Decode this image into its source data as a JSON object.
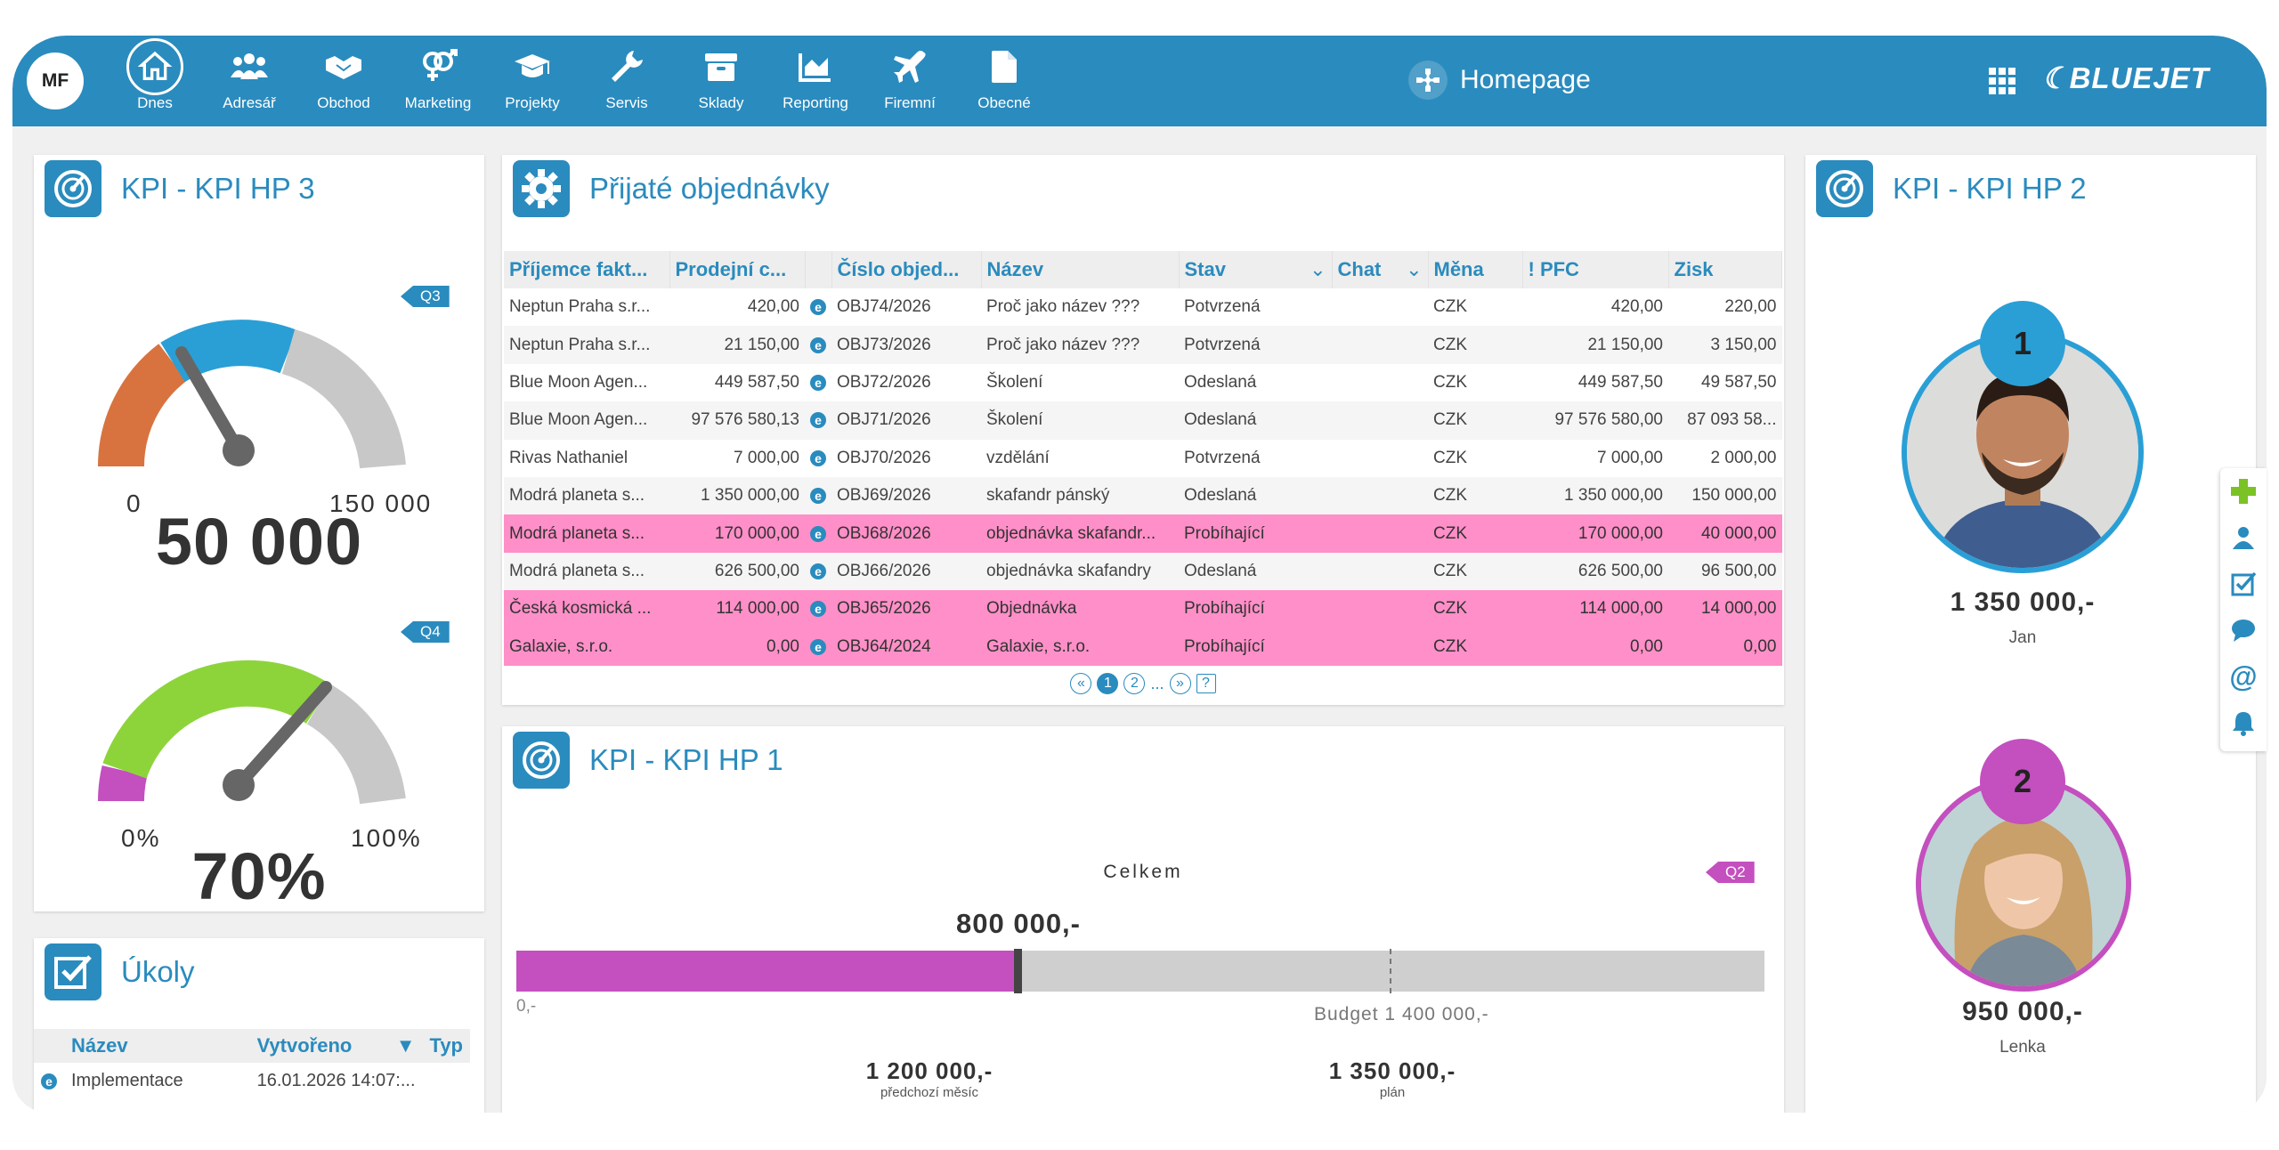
{
  "header": {
    "user_initials": "MF",
    "page_title": "Homepage",
    "brand": "BLUEJET",
    "nav": [
      {
        "label": "Dnes",
        "icon": "home-icon",
        "active": true
      },
      {
        "label": "Adresář",
        "icon": "people-icon"
      },
      {
        "label": "Obchod",
        "icon": "handshake-icon"
      },
      {
        "label": "Marketing",
        "icon": "gender-icon"
      },
      {
        "label": "Projekty",
        "icon": "graduation-cap-icon"
      },
      {
        "label": "Servis",
        "icon": "wrench-icon"
      },
      {
        "label": "Sklady",
        "icon": "box-icon"
      },
      {
        "label": "Reporting",
        "icon": "chart-icon"
      },
      {
        "label": "Firemní",
        "icon": "plane-icon"
      },
      {
        "label": "Obecné",
        "icon": "document-icon"
      }
    ]
  },
  "kpi3": {
    "title": "KPI - KPI HP 3",
    "gauge1": {
      "badge": "Q3",
      "min": "0",
      "max": "150 000",
      "value": "50 000",
      "fraction": 0.33
    },
    "gauge2": {
      "badge": "Q4",
      "min": "0%",
      "max": "100%",
      "value": "70%",
      "fraction": 0.7
    }
  },
  "orders": {
    "title": "Přijaté objednávky",
    "columns": [
      "Příjemce fakt...",
      "Prodejní c...",
      "",
      "Číslo objed...",
      "Název",
      "Stav",
      "Chat",
      "Měna",
      "! PFC",
      "Zisk"
    ],
    "rows": [
      {
        "recipient": "Neptun Praha s.r...",
        "price": "420,00",
        "number": "OBJ74/2026",
        "name": "Proč jako název ???",
        "state": "Potvrzená",
        "currency": "CZK",
        "pfc": "420,00",
        "profit": "220,00",
        "hl": false
      },
      {
        "recipient": "Neptun Praha s.r...",
        "price": "21 150,00",
        "number": "OBJ73/2026",
        "name": "Proč jako název ???",
        "state": "Potvrzená",
        "currency": "CZK",
        "pfc": "21 150,00",
        "profit": "3 150,00",
        "hl": false
      },
      {
        "recipient": "Blue Moon Agen...",
        "price": "449 587,50",
        "number": "OBJ72/2026",
        "name": "Školení",
        "state": "Odeslaná",
        "currency": "CZK",
        "pfc": "449 587,50",
        "profit": "49 587,50",
        "hl": false
      },
      {
        "recipient": "Blue Moon Agen...",
        "price": "97 576 580,13",
        "number": "OBJ71/2026",
        "name": "Školení",
        "state": "Odeslaná",
        "currency": "CZK",
        "pfc": "97 576 580,00",
        "profit": "87 093 58...",
        "hl": false
      },
      {
        "recipient": "Rivas Nathaniel",
        "price": "7 000,00",
        "number": "OBJ70/2026",
        "name": "vzdělání",
        "state": "Potvrzená",
        "currency": "CZK",
        "pfc": "7 000,00",
        "profit": "2 000,00",
        "hl": false
      },
      {
        "recipient": "Modrá planeta s...",
        "price": "1 350 000,00",
        "number": "OBJ69/2026",
        "name": "skafandr pánský",
        "state": "Odeslaná",
        "currency": "CZK",
        "pfc": "1 350 000,00",
        "profit": "150 000,00",
        "hl": false
      },
      {
        "recipient": "Modrá planeta s...",
        "price": "170 000,00",
        "number": "OBJ68/2026",
        "name": "objednávka skafandr...",
        "state": "Probíhající",
        "currency": "CZK",
        "pfc": "170 000,00",
        "profit": "40 000,00",
        "hl": true
      },
      {
        "recipient": "Modrá planeta s...",
        "price": "626 500,00",
        "number": "OBJ66/2026",
        "name": "objednávka skafandry",
        "state": "Odeslaná",
        "currency": "CZK",
        "pfc": "626 500,00",
        "profit": "96 500,00",
        "hl": false
      },
      {
        "recipient": "Česká kosmická ...",
        "price": "114 000,00",
        "number": "OBJ65/2026",
        "name": "Objednávka",
        "state": "Probíhající",
        "currency": "CZK",
        "pfc": "114 000,00",
        "profit": "14 000,00",
        "hl": true
      },
      {
        "recipient": "Galaxie, s.r.o.",
        "price": "0,00",
        "number": "OBJ64/2024",
        "name": "Galaxie, s.r.o.",
        "state": "Probíhající",
        "currency": "CZK",
        "pfc": "0,00",
        "profit": "0,00",
        "hl": true
      }
    ],
    "pager": {
      "first": "«",
      "pages": [
        "1",
        "2"
      ],
      "ellipsis": "...",
      "last": "»",
      "help": "?"
    }
  },
  "kpi1": {
    "title": "KPI - KPI HP 1",
    "section": "Celkem",
    "badge": "Q2",
    "value": "800 000,-",
    "zero": "0,-",
    "budget": "Budget 1 400 000,-",
    "fill_fraction": 0.4,
    "budget_fraction": 0.7,
    "stats": [
      {
        "value": "1 200 000,-",
        "label": "předchozí měsíc"
      },
      {
        "value": "1 350 000,-",
        "label": "plán"
      }
    ]
  },
  "tasks": {
    "title": "Úkoly",
    "columns": [
      "Název",
      "Vytvořeno",
      "Typ"
    ],
    "rows": [
      {
        "name": "Implementace",
        "created": "16.01.2026 14:07:..."
      }
    ]
  },
  "kpi2": {
    "title": "KPI - KPI HP 2",
    "people": [
      {
        "rank": "1",
        "amount": "1 350 000,-",
        "name": "Jan",
        "color": "#2a9fd6"
      },
      {
        "rank": "2",
        "amount": "950 000,-",
        "name": "Lenka",
        "color": "#c44fbf"
      }
    ]
  },
  "colors": {
    "brand": "#2a8bbe",
    "highlight_row": "#ff8fc8",
    "gauge_orange": "#d8733f",
    "gauge_blue": "#2a9fd6",
    "gauge_green": "#8dd43a",
    "gauge_magenta": "#c44fbf",
    "bar_fill": "#c44fbf"
  }
}
